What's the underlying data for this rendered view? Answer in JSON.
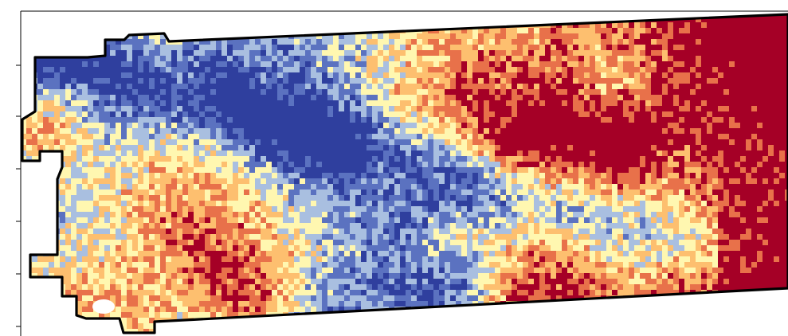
{
  "figure": {
    "type": "raster-map",
    "axis": {
      "left_ticks": 6,
      "tick_labels": []
    },
    "colormap": {
      "name": "RdYlBu",
      "colors": [
        "#a50026",
        "#e8714a",
        "#fdbf6f",
        "#fff7b0",
        "#a9bfe0",
        "#5b72c0",
        "#2f3f9e"
      ]
    },
    "boundary_color": "#000000",
    "nodata_color": "#ffffff"
  }
}
